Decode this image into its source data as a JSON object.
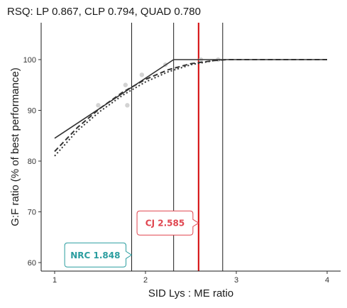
{
  "chart_data": {
    "type": "line",
    "title": "RSQ: LP 0.867, CLP 0.794, QUAD 0.780",
    "xlabel": "SID Lys : ME ratio",
    "ylabel": "G:F ratio (% of best performance)",
    "xlim": [
      1,
      4
    ],
    "ylim": [
      58,
      107
    ],
    "x_ticks": [
      1,
      2,
      3,
      4
    ],
    "y_ticks": [
      60,
      70,
      80,
      90,
      100
    ],
    "grid": false,
    "scatter": {
      "color": "#d3d3d3",
      "points": [
        {
          "x": 1.48,
          "y": 91.0
        },
        {
          "x": 1.78,
          "y": 95.0
        },
        {
          "x": 1.8,
          "y": 91.0
        },
        {
          "x": 1.96,
          "y": 97.0
        },
        {
          "x": 2.22,
          "y": 99.0
        },
        {
          "x": 2.61,
          "y": 100.0
        },
        {
          "x": 2.8,
          "y": 100.0
        }
      ]
    },
    "series": [
      {
        "style": "solid",
        "color": "#333333",
        "x": [
          1.0,
          2.31,
          4.0
        ],
        "y": [
          84.5,
          100.0,
          100.0
        ]
      },
      {
        "style": "dashed",
        "color": "#333333",
        "x": [
          1.0,
          1.25,
          1.5,
          1.75,
          2.0,
          2.25,
          2.5,
          2.75,
          2.9,
          3.2,
          4.0
        ],
        "y": [
          81.9,
          86.6,
          90.4,
          93.6,
          96.1,
          98.0,
          99.2,
          99.8,
          100.0,
          100.0,
          100.0
        ]
      },
      {
        "style": "dotted",
        "color": "#333333",
        "x": [
          1.0,
          1.25,
          1.5,
          1.75,
          2.0,
          2.25,
          2.5,
          2.75,
          2.85
        ],
        "y": [
          81.0,
          86.0,
          89.8,
          93.0,
          95.6,
          97.6,
          99.0,
          99.8,
          100.0
        ]
      }
    ],
    "reference_lines": [
      {
        "x": 1.848,
        "color": "#1a1a1a"
      },
      {
        "x": 2.31,
        "color": "#1a1a1a"
      },
      {
        "x": 2.585,
        "color": "#d7191c"
      },
      {
        "x": 2.85,
        "color": "#1a1a1a"
      }
    ],
    "annotations": [
      {
        "label": "CJ 2.585",
        "x": 2.585,
        "y": 67.8,
        "color": "#e0454f"
      },
      {
        "label": "NRC 1.848",
        "x": 1.848,
        "y": 61.5,
        "color": "#2a9d9f"
      }
    ]
  }
}
